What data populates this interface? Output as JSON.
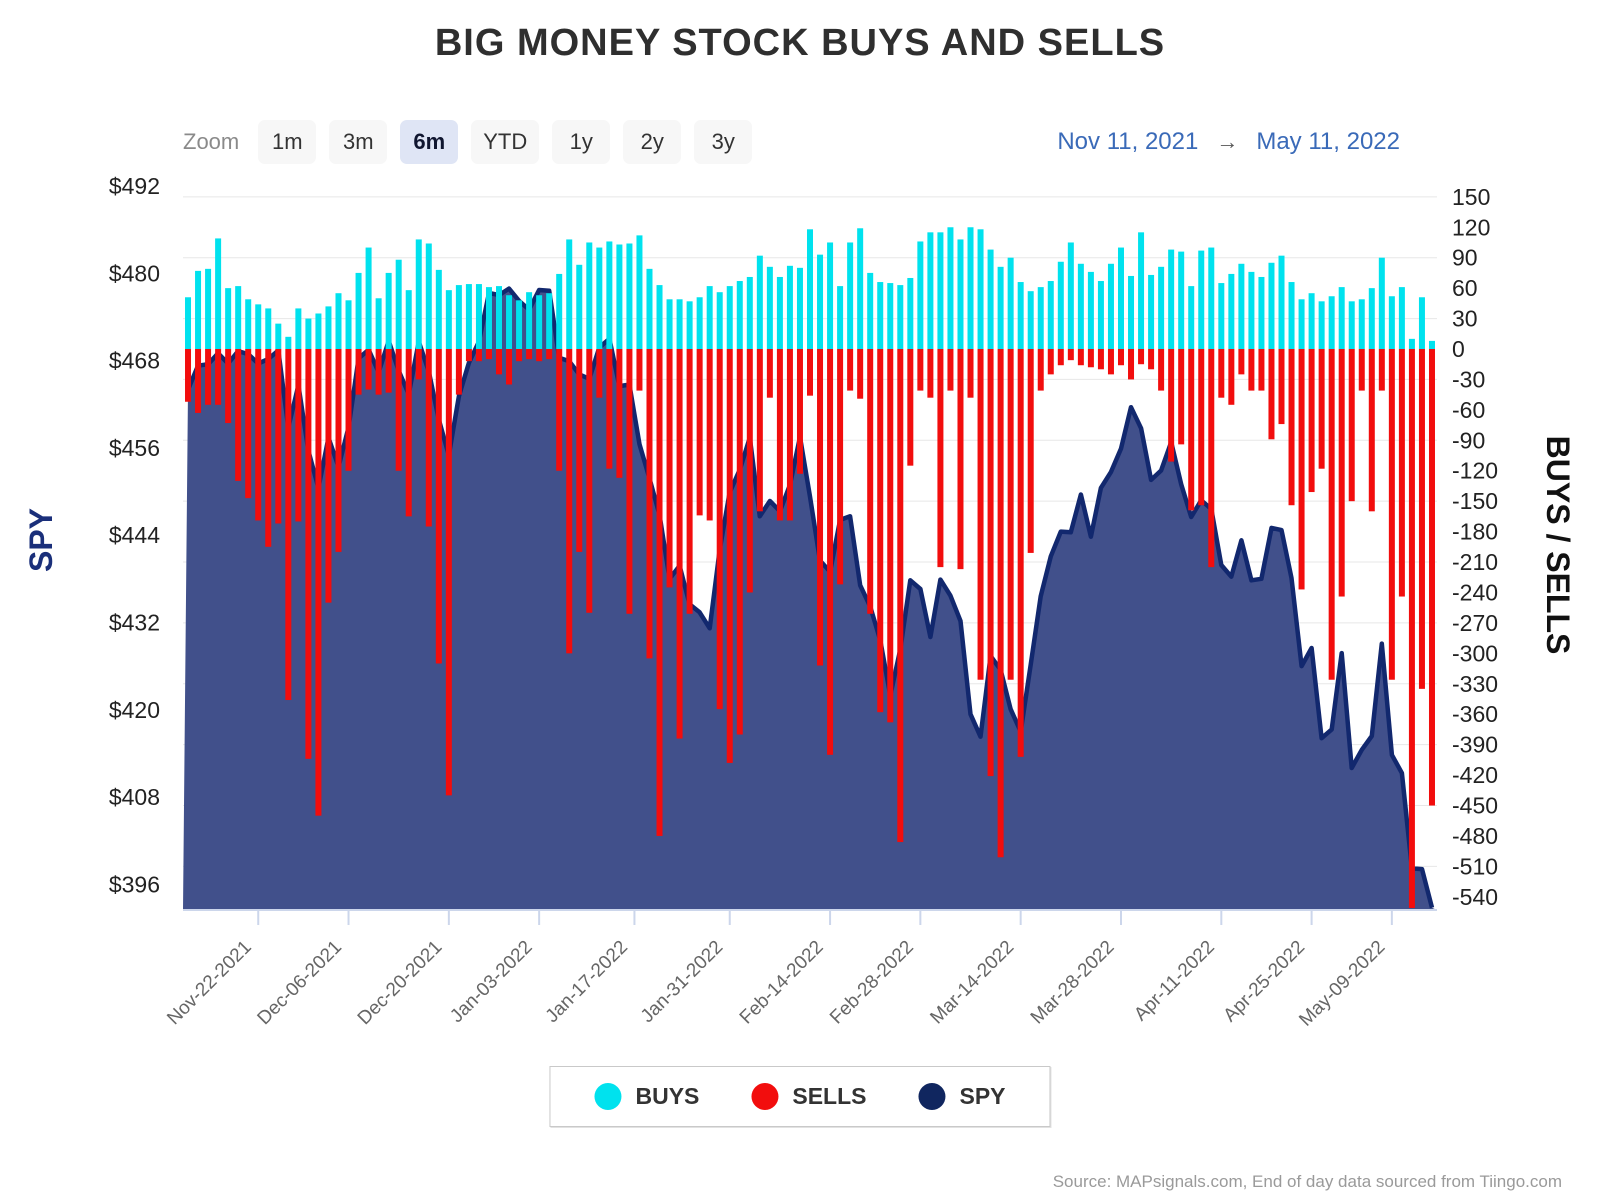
{
  "title": "BIG MONEY STOCK BUYS AND SELLS",
  "toolbar": {
    "zoom_label": "Zoom",
    "buttons": [
      "1m",
      "3m",
      "6m",
      "YTD",
      "1y",
      "2y",
      "3y"
    ],
    "active": "6m"
  },
  "range": {
    "from": "Nov 11, 2021",
    "arrow": "→",
    "to": "May 11, 2022"
  },
  "axes": {
    "left_title": "SPY",
    "right_title": "BUYS / SELLS",
    "left_tick_labels": [
      "$492",
      "$480",
      "$468",
      "$456",
      "$444",
      "$432",
      "$420",
      "$408",
      "$396"
    ],
    "left_tick_values": [
      492,
      480,
      468,
      456,
      444,
      432,
      420,
      408,
      396
    ],
    "right_tick_values": [
      150,
      120,
      90,
      60,
      30,
      0,
      -30,
      -60,
      -90,
      -120,
      -150,
      -180,
      -210,
      -240,
      -270,
      -300,
      -330,
      -360,
      -390,
      -420,
      -450,
      -480,
      -510,
      -540
    ]
  },
  "legend": [
    {
      "label": "BUYS",
      "color": "#00e2ee"
    },
    {
      "label": "SELLS",
      "color": "#f20d0d"
    },
    {
      "label": "SPY",
      "color": "#10265f"
    }
  ],
  "source": "Source: MAPsignals.com, End of day data sourced from Tiingo.com",
  "colors": {
    "buys": "#00e2ee",
    "sells": "#f20d0d",
    "spy_line": "#12286e",
    "spy_fill": "#41508b",
    "grid": "#e7e7e7",
    "axis_line": "#ccd6eb",
    "tick_text": "#222222",
    "x_label_text": "#666666",
    "left_axis_title": "#1a2f7a",
    "right_axis_title": "#111111"
  },
  "chart_data": {
    "type": "combo",
    "subtype": "bar-bar-area",
    "title": "BIG MONEY STOCK BUYS AND SELLS",
    "x_label_rotation": -45,
    "left_ylim": [
      396,
      492
    ],
    "right_ylim": [
      -540,
      150
    ],
    "legend_position": "bottom",
    "grid": true,
    "x_ticks": [
      {
        "label": "Nov-22-2021",
        "i": 7
      },
      {
        "label": "Dec-06-2021",
        "i": 16
      },
      {
        "label": "Dec-20-2021",
        "i": 26
      },
      {
        "label": "Jan-03-2022",
        "i": 35
      },
      {
        "label": "Jan-17-2022",
        "i": 44.5
      },
      {
        "label": "Jan-31-2022",
        "i": 54
      },
      {
        "label": "Feb-14-2022",
        "i": 64
      },
      {
        "label": "Feb-28-2022",
        "i": 73
      },
      {
        "label": "Mar-14-2022",
        "i": 83
      },
      {
        "label": "Mar-28-2022",
        "i": 93
      },
      {
        "label": "Apr-11-2022",
        "i": 103
      },
      {
        "label": "Apr-25-2022",
        "i": 112
      },
      {
        "label": "May-09-2022",
        "i": 120
      }
    ],
    "dates": [
      "Nov-11-2021",
      "Nov-12-2021",
      "Nov-15-2021",
      "Nov-16-2021",
      "Nov-17-2021",
      "Nov-18-2021",
      "Nov-19-2021",
      "Nov-22-2021",
      "Nov-23-2021",
      "Nov-24-2021",
      "Nov-26-2021",
      "Nov-29-2021",
      "Nov-30-2021",
      "Dec-01-2021",
      "Dec-02-2021",
      "Dec-03-2021",
      "Dec-06-2021",
      "Dec-07-2021",
      "Dec-08-2021",
      "Dec-09-2021",
      "Dec-10-2021",
      "Dec-13-2021",
      "Dec-14-2021",
      "Dec-15-2021",
      "Dec-16-2021",
      "Dec-17-2021",
      "Dec-20-2021",
      "Dec-21-2021",
      "Dec-22-2021",
      "Dec-23-2021",
      "Dec-27-2021",
      "Dec-28-2021",
      "Dec-29-2021",
      "Dec-30-2021",
      "Dec-31-2021",
      "Jan-03-2022",
      "Jan-04-2022",
      "Jan-05-2022",
      "Jan-06-2022",
      "Jan-07-2022",
      "Jan-10-2022",
      "Jan-11-2022",
      "Jan-12-2022",
      "Jan-13-2022",
      "Jan-14-2022",
      "Jan-18-2022",
      "Jan-19-2022",
      "Jan-20-2022",
      "Jan-21-2022",
      "Jan-24-2022",
      "Jan-25-2022",
      "Jan-26-2022",
      "Jan-27-2022",
      "Jan-28-2022",
      "Jan-31-2022",
      "Feb-01-2022",
      "Feb-02-2022",
      "Feb-03-2022",
      "Feb-04-2022",
      "Feb-07-2022",
      "Feb-08-2022",
      "Feb-09-2022",
      "Feb-10-2022",
      "Feb-11-2022",
      "Feb-14-2022",
      "Feb-15-2022",
      "Feb-16-2022",
      "Feb-17-2022",
      "Feb-18-2022",
      "Feb-22-2022",
      "Feb-23-2022",
      "Feb-24-2022",
      "Feb-25-2022",
      "Feb-28-2022",
      "Mar-01-2022",
      "Mar-02-2022",
      "Mar-03-2022",
      "Mar-04-2022",
      "Mar-07-2022",
      "Mar-08-2022",
      "Mar-09-2022",
      "Mar-10-2022",
      "Mar-11-2022",
      "Mar-14-2022",
      "Mar-15-2022",
      "Mar-16-2022",
      "Mar-17-2022",
      "Mar-18-2022",
      "Mar-21-2022",
      "Mar-22-2022",
      "Mar-23-2022",
      "Mar-24-2022",
      "Mar-25-2022",
      "Mar-28-2022",
      "Mar-29-2022",
      "Mar-30-2022",
      "Mar-31-2022",
      "Apr-01-2022",
      "Apr-04-2022",
      "Apr-05-2022",
      "Apr-06-2022",
      "Apr-07-2022",
      "Apr-08-2022",
      "Apr-11-2022",
      "Apr-12-2022",
      "Apr-13-2022",
      "Apr-14-2022",
      "Apr-18-2022",
      "Apr-19-2022",
      "Apr-20-2022",
      "Apr-21-2022",
      "Apr-22-2022",
      "Apr-25-2022",
      "Apr-26-2022",
      "Apr-27-2022",
      "Apr-28-2022",
      "Apr-29-2022",
      "May-02-2022",
      "May-03-2022",
      "May-04-2022",
      "May-05-2022",
      "May-06-2022",
      "May-09-2022",
      "May-10-2022",
      "May-11-2022"
    ],
    "series": [
      {
        "name": "BUYS",
        "type": "column",
        "axis": "right",
        "color": "#00e2ee",
        "values": [
          51,
          77,
          79,
          109,
          60,
          62,
          49,
          44,
          40,
          25,
          12,
          40,
          30,
          35,
          42,
          55,
          48,
          75,
          100,
          50,
          75,
          88,
          58,
          108,
          104,
          78,
          58,
          63,
          64,
          64,
          61,
          62,
          53,
          48,
          56,
          53,
          55,
          74,
          108,
          83,
          105,
          100,
          106,
          103,
          104,
          112,
          79,
          63,
          49,
          49,
          47,
          51,
          62,
          56,
          62,
          67,
          71,
          92,
          81,
          71,
          82,
          80,
          118,
          93,
          105,
          62,
          105,
          119,
          75,
          66,
          65,
          63,
          70,
          106,
          115,
          115,
          120,
          108,
          120,
          118,
          98,
          81,
          90,
          66,
          57,
          61,
          67,
          86,
          105,
          84,
          76,
          67,
          84,
          100,
          72,
          115,
          73,
          81,
          98,
          96,
          62,
          97,
          100,
          65,
          74,
          84,
          76,
          71,
          85,
          92,
          66,
          49,
          55,
          47,
          52,
          61,
          47,
          49,
          60,
          90,
          52,
          61,
          10,
          51,
          8
        ]
      },
      {
        "name": "SELLS",
        "type": "column",
        "axis": "right",
        "color": "#f20d0d",
        "values": [
          -52,
          -63,
          -55,
          -55,
          -73,
          -130,
          -147,
          -169,
          -195,
          -172,
          -346,
          -170,
          -404,
          -460,
          -250,
          -200,
          -120,
          -45,
          -40,
          -45,
          -43,
          -120,
          -165,
          -30,
          -175,
          -310,
          -440,
          -45,
          -12,
          -12,
          -10,
          -25,
          -35,
          -12,
          -10,
          -12,
          -10,
          -120,
          -300,
          -200,
          -260,
          -48,
          -118,
          -127,
          -261,
          -41,
          -305,
          -480,
          -235,
          -384,
          -261,
          -164,
          -169,
          -355,
          -408,
          -380,
          -240,
          -160,
          -48,
          -169,
          -169,
          -123,
          -46,
          -312,
          -400,
          -232,
          -41,
          -49,
          -261,
          -358,
          -368,
          -486,
          -115,
          -41,
          -48,
          -215,
          -41,
          -217,
          -48,
          -326,
          -421,
          -501,
          -326,
          -402,
          -201,
          -41,
          -25,
          -16,
          -11,
          -16,
          -18,
          -20,
          -25,
          -16,
          -30,
          -15,
          -20,
          -41,
          -111,
          -94,
          -159,
          -154,
          -215,
          -48,
          -55,
          -25,
          -41,
          -41,
          -89,
          -74,
          -154,
          -237,
          -141,
          -118,
          -326,
          -244,
          -150,
          -41,
          -160,
          -41,
          -326,
          -244,
          -555,
          -335,
          -450
        ]
      },
      {
        "name": "SPY",
        "type": "area",
        "axis": "left",
        "color": "#12286e",
        "values": [
          464.0,
          467.3,
          467.5,
          469.0,
          467.6,
          469.3,
          468.9,
          467.6,
          468.2,
          469.4,
          458.8,
          464.6,
          455.6,
          450.5,
          457.4,
          453.4,
          458.8,
          468.3,
          469.5,
          466.4,
          470.7,
          466.6,
          463.4,
          470.6,
          466.5,
          459.9,
          455.0,
          463.1,
          467.7,
          470.6,
          477.3,
          477.0,
          477.9,
          476.2,
          475.0,
          477.7,
          477.6,
          468.4,
          467.9,
          466.1,
          465.5,
          469.8,
          471.0,
          464.5,
          464.7,
          456.5,
          451.8,
          446.8,
          438.0,
          439.8,
          434.5,
          433.4,
          431.2,
          442.0,
          449.9,
          453.0,
          457.4,
          446.6,
          448.7,
          447.3,
          450.9,
          457.5,
          449.3,
          440.5,
          439.0,
          446.1,
          446.6,
          437.1,
          434.2,
          429.6,
          422.0,
          428.3,
          437.8,
          436.6,
          430.0,
          437.9,
          435.7,
          432.2,
          419.4,
          416.3,
          427.4,
          425.5,
          420.1,
          417.0,
          426.2,
          435.6,
          441.1,
          444.5,
          444.4,
          449.6,
          443.8,
          450.5,
          452.7,
          455.9,
          461.6,
          458.7,
          451.6,
          452.9,
          456.8,
          451.0,
          446.5,
          448.8,
          447.6,
          439.9,
          438.3,
          443.3,
          437.8,
          438.0,
          445.0,
          444.7,
          438.1,
          426.0,
          428.5,
          416.1,
          417.3,
          427.8,
          412.0,
          414.5,
          416.4,
          429.1,
          413.8,
          411.3,
          398.2,
          398.1,
          392.8
        ]
      }
    ]
  }
}
